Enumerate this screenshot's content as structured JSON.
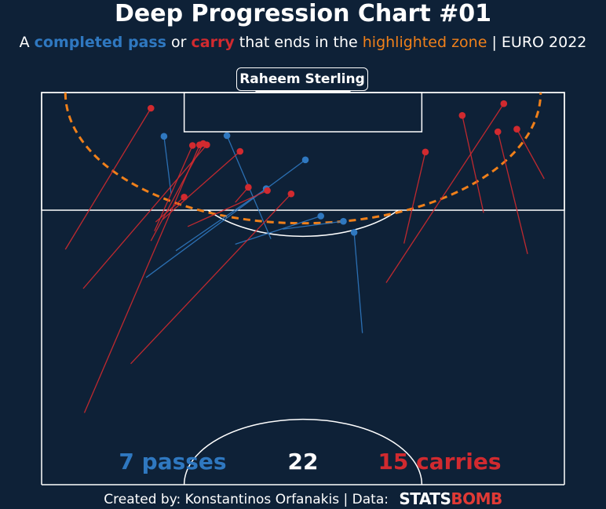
{
  "title": "Deep Progression Chart #01",
  "subtitle": {
    "prefix": "A",
    "pass_term": "completed pass",
    "or": "or",
    "carry_term": "carry",
    "middle": "that ends in the",
    "zone_term": "highlighted zone",
    "separator": "|",
    "competition": "EURO 2022"
  },
  "player": "Raheem Sterling",
  "footer": {
    "credit": "Created by: Konstantinos Orfanakis",
    "separator": "|",
    "data_label": "Data:",
    "logo_a": "STATS",
    "logo_b": "BOMB"
  },
  "colors": {
    "background": "#0e2137",
    "pass": "#2f78c0",
    "carry": "#d12a2f",
    "zone": "#f0801a",
    "lines": "#ffffff"
  },
  "chart_data": {
    "type": "scatter",
    "pitch": "half-pitch, vertical, attacking upward",
    "x_range": [
      18,
      62
    ],
    "y_range": [
      60,
      0
    ],
    "zone": "arc of radius 20 around the goal centre",
    "counts": {
      "passes": 7,
      "carries": 15,
      "total": 22
    },
    "count_labels": {
      "passes": "7 passes",
      "carries": "15 carries",
      "total": "22"
    },
    "passes": [
      {
        "start": [
          37.3,
          22.4
        ],
        "end": [
          33.6,
          6.6
        ]
      },
      {
        "start": [
          26.8,
          28.3
        ],
        "end": [
          40.2,
          10.3
        ]
      },
      {
        "start": [
          29.3,
          24.2
        ],
        "end": [
          36.9,
          14.7
        ]
      },
      {
        "start": [
          34.3,
          23.2
        ],
        "end": [
          41.5,
          18.9
        ]
      },
      {
        "start": [
          38.3,
          20.9
        ],
        "end": [
          43.4,
          19.7
        ]
      },
      {
        "start": [
          45.0,
          36.8
        ],
        "end": [
          44.3,
          21.4
        ]
      },
      {
        "start": [
          28.9,
          15.5
        ],
        "end": [
          28.3,
          6.7
        ]
      }
    ],
    "carries": [
      {
        "start": [
          20.0,
          24.0
        ],
        "end": [
          27.2,
          2.4
        ]
      },
      {
        "start": [
          21.5,
          30.0
        ],
        "end": [
          31.9,
          8.0
        ]
      },
      {
        "start": [
          27.5,
          21.2
        ],
        "end": [
          30.7,
          8.1
        ]
      },
      {
        "start": [
          27.2,
          22.7
        ],
        "end": [
          31.6,
          7.8
        ]
      },
      {
        "start": [
          21.6,
          49.0
        ],
        "end": [
          31.3,
          8.0
        ]
      },
      {
        "start": [
          27.6,
          19.8
        ],
        "end": [
          30.0,
          16.0
        ]
      },
      {
        "start": [
          34.3,
          16.8
        ],
        "end": [
          35.4,
          14.5
        ]
      },
      {
        "start": [
          28.2,
          19.4
        ],
        "end": [
          34.7,
          9.0
        ]
      },
      {
        "start": [
          30.3,
          20.5
        ],
        "end": [
          37.0,
          15.0
        ]
      },
      {
        "start": [
          25.5,
          41.5
        ],
        "end": [
          39.0,
          15.5
        ]
      },
      {
        "start": [
          48.5,
          23.1
        ],
        "end": [
          50.3,
          9.1
        ]
      },
      {
        "start": [
          47.0,
          29.1
        ],
        "end": [
          56.9,
          1.7
        ]
      },
      {
        "start": [
          58.9,
          24.7
        ],
        "end": [
          56.4,
          6.0
        ]
      },
      {
        "start": [
          60.3,
          13.2
        ],
        "end": [
          58.0,
          5.6
        ]
      },
      {
        "start": [
          55.2,
          18.4
        ],
        "end": [
          53.4,
          3.5
        ]
      }
    ]
  }
}
